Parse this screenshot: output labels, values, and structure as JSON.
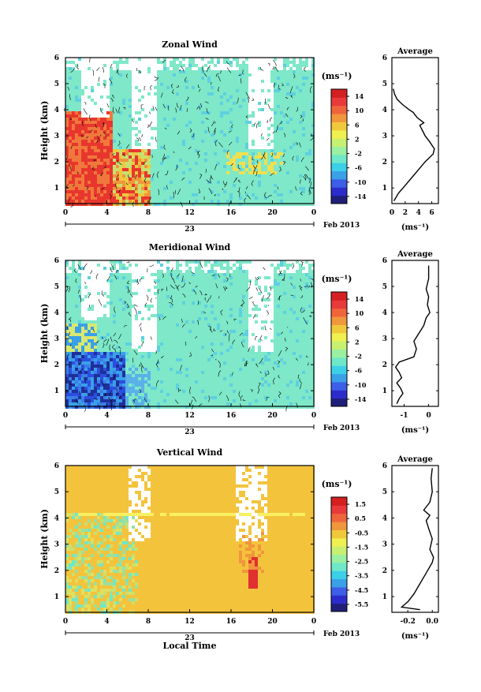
{
  "chart_data": [
    {
      "type": "heatmap",
      "title": "Zonal Wind",
      "ylabel": "Height (km)",
      "xlabel": "",
      "x_ticks": [
        "0",
        "4",
        "8",
        "12",
        "16",
        "20",
        "0"
      ],
      "y_ticks": [
        "1",
        "2",
        "3",
        "4",
        "5",
        "6"
      ],
      "xlim": [
        0,
        24
      ],
      "ylim": [
        0.4,
        6
      ],
      "date_tick": "23",
      "date_label": "Feb 2013",
      "colorbar": {
        "unit": "(ms⁻¹)",
        "ticks": [
          "14",
          "10",
          "6",
          "2",
          "-2",
          "-6",
          "-10",
          "-14"
        ],
        "min": -16,
        "max": 16,
        "colors": [
          "#1f1f7a",
          "#2c2ccc",
          "#3d5ee8",
          "#3aa0e8",
          "#3cd0e8",
          "#6ee8c8",
          "#9af0a0",
          "#c8f070",
          "#f0f050",
          "#f0c83c",
          "#f0963c",
          "#f0643c",
          "#e83a3a",
          "#d42020"
        ]
      },
      "profile": {
        "title": "Average",
        "xlabel": "(ms⁻¹)",
        "x_ticks": [
          "0",
          "2",
          "4",
          "6"
        ],
        "y_ticks": [
          "1",
          "2",
          "3",
          "4",
          "5",
          "6"
        ],
        "xlim": [
          0,
          7
        ],
        "ylim": [
          0.4,
          6
        ],
        "points": [
          [
            0.3,
            0.5
          ],
          [
            1.0,
            0.8
          ],
          [
            2.0,
            1.1
          ],
          [
            3.0,
            1.4
          ],
          [
            4.0,
            1.7
          ],
          [
            5.0,
            2.0
          ],
          [
            6.2,
            2.3
          ],
          [
            6.4,
            2.5
          ],
          [
            5.6,
            2.8
          ],
          [
            5.0,
            3.0
          ],
          [
            4.6,
            3.2
          ],
          [
            4.2,
            3.4
          ],
          [
            4.8,
            3.5
          ],
          [
            3.8,
            3.7
          ],
          [
            3.2,
            3.9
          ],
          [
            2.6,
            4.0
          ],
          [
            1.6,
            4.2
          ],
          [
            0.8,
            4.4
          ],
          [
            0.4,
            4.6
          ],
          [
            0.2,
            4.8
          ]
        ]
      }
    },
    {
      "type": "heatmap",
      "title": "Meridional Wind",
      "ylabel": "Height (km)",
      "xlabel": "",
      "x_ticks": [
        "0",
        "4",
        "8",
        "12",
        "16",
        "20",
        "0"
      ],
      "y_ticks": [
        "1",
        "2",
        "3",
        "4",
        "5",
        "6"
      ],
      "xlim": [
        0,
        24
      ],
      "ylim": [
        0.4,
        6
      ],
      "date_tick": "23",
      "date_label": "Feb 2013",
      "colorbar": {
        "unit": "(ms⁻¹)",
        "ticks": [
          "14",
          "10",
          "6",
          "2",
          "-2",
          "-6",
          "-10",
          "-14"
        ],
        "min": -16,
        "max": 16,
        "colors": [
          "#1f1f7a",
          "#2c2ccc",
          "#3d5ee8",
          "#3aa0e8",
          "#3cd0e8",
          "#6ee8c8",
          "#9af0a0",
          "#c8f070",
          "#f0f050",
          "#f0c83c",
          "#f0963c",
          "#f0643c",
          "#e83a3a",
          "#d42020"
        ]
      },
      "profile": {
        "title": "Average",
        "xlabel": "(ms⁻¹)",
        "x_ticks": [
          "-1",
          "0"
        ],
        "y_ticks": [
          "1",
          "2",
          "3",
          "4",
          "5",
          "6"
        ],
        "xlim": [
          -1.5,
          0.4
        ],
        "ylim": [
          0.4,
          6
        ],
        "points": [
          [
            -1.3,
            0.5
          ],
          [
            -1.2,
            0.7
          ],
          [
            -1.05,
            0.9
          ],
          [
            -1.15,
            1.1
          ],
          [
            -1.3,
            1.3
          ],
          [
            -1.1,
            1.5
          ],
          [
            -1.2,
            1.7
          ],
          [
            -1.35,
            1.9
          ],
          [
            -1.2,
            2.1
          ],
          [
            -0.6,
            2.3
          ],
          [
            -0.5,
            2.6
          ],
          [
            -0.6,
            2.9
          ],
          [
            -0.4,
            3.2
          ],
          [
            -0.2,
            3.5
          ],
          [
            -0.1,
            3.8
          ],
          [
            0.05,
            4.0
          ],
          [
            -0.05,
            4.3
          ],
          [
            0.0,
            4.6
          ],
          [
            -0.1,
            4.9
          ],
          [
            0.0,
            5.3
          ],
          [
            0.0,
            5.8
          ]
        ]
      }
    },
    {
      "type": "heatmap",
      "title": "Vertical Wind",
      "ylabel": "Height (km)",
      "xlabel": "Local Time",
      "x_ticks": [
        "0",
        "4",
        "8",
        "12",
        "16",
        "20",
        "0"
      ],
      "y_ticks": [
        "1",
        "2",
        "3",
        "4",
        "5",
        "6"
      ],
      "xlim": [
        0,
        24
      ],
      "ylim": [
        0.4,
        6
      ],
      "date_tick": "23",
      "date_label": "Feb 2013",
      "colorbar": {
        "unit": "(ms⁻¹)",
        "ticks": [
          "1.5",
          "0.5",
          "-0.5",
          "-1.5",
          "-2.5",
          "-3.5",
          "-4.5",
          "-5.5"
        ],
        "min": -6,
        "max": 2,
        "colors": [
          "#1f1f7a",
          "#2c2ccc",
          "#3d5ee8",
          "#3aa0e8",
          "#3cd0e8",
          "#6ee8c8",
          "#9af0a0",
          "#c8f070",
          "#f0f050",
          "#f0c83c",
          "#f0963c",
          "#f0643c",
          "#e83a3a",
          "#d42020"
        ]
      },
      "profile": {
        "title": "Average",
        "xlabel": "(ms⁻¹)",
        "x_ticks": [
          "-0.2",
          "0.0"
        ],
        "y_ticks": [
          "1",
          "2",
          "3",
          "4",
          "5",
          "6"
        ],
        "xlim": [
          -0.33,
          0.05
        ],
        "ylim": [
          0.4,
          6
        ],
        "points": [
          [
            -0.1,
            0.5
          ],
          [
            -0.25,
            0.6
          ],
          [
            -0.2,
            0.8
          ],
          [
            -0.15,
            1.1
          ],
          [
            -0.1,
            1.5
          ],
          [
            -0.05,
            1.9
          ],
          [
            0.0,
            2.3
          ],
          [
            0.01,
            2.5
          ],
          [
            -0.02,
            2.8
          ],
          [
            0.0,
            3.2
          ],
          [
            -0.03,
            3.6
          ],
          [
            -0.05,
            3.9
          ],
          [
            -0.02,
            4.1
          ],
          [
            -0.07,
            4.3
          ],
          [
            -0.02,
            4.6
          ],
          [
            0.0,
            5.0
          ],
          [
            -0.01,
            5.5
          ],
          [
            0.0,
            5.9
          ]
        ]
      }
    }
  ]
}
